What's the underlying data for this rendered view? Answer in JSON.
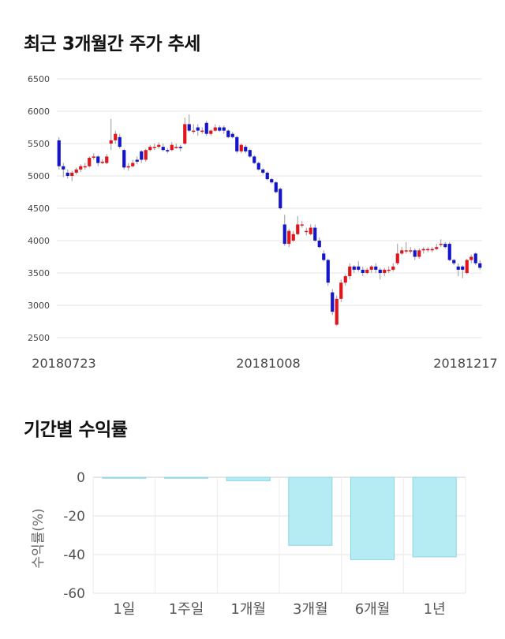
{
  "section1": {
    "title": "최근 3개월간 주가 추세"
  },
  "section2": {
    "title": "기간별 수익률"
  },
  "chart_data": [
    {
      "type": "candlestick",
      "ylim": [
        2500,
        6500
      ],
      "yticks": [
        "6500",
        "6000",
        "5500",
        "5000",
        "4500",
        "4000",
        "3500",
        "3000",
        "2500"
      ],
      "xticks": [
        "20180723",
        "20181008",
        "20181217"
      ],
      "up_color": "#e0141c",
      "down_color": "#1414c8",
      "grid": true,
      "candles": [
        [
          5550,
          5150,
          5600,
          5100
        ],
        [
          5150,
          5100,
          5200,
          4980
        ],
        [
          5050,
          5000,
          5100,
          4960
        ],
        [
          5000,
          5050,
          5080,
          4920
        ],
        [
          5050,
          5100,
          5130,
          5020
        ],
        [
          5100,
          5150,
          5180,
          5060
        ],
        [
          5150,
          5150,
          5200,
          5100
        ],
        [
          5150,
          5280,
          5300,
          5130
        ],
        [
          5280,
          5300,
          5350,
          5250
        ],
        [
          5300,
          5200,
          5320,
          5150
        ],
        [
          5200,
          5220,
          5260,
          5180
        ],
        [
          5200,
          5300,
          5340,
          5180
        ],
        [
          5500,
          5550,
          5880,
          5400
        ],
        [
          5550,
          5650,
          5700,
          5500
        ],
        [
          5600,
          5450,
          5650,
          5420
        ],
        [
          5400,
          5130,
          5420,
          5100
        ],
        [
          5130,
          5150,
          5200,
          5080
        ],
        [
          5150,
          5200,
          5250,
          5130
        ],
        [
          5250,
          5220,
          5300,
          5180
        ],
        [
          5380,
          5250,
          5400,
          5200
        ],
        [
          5250,
          5400,
          5420,
          5220
        ],
        [
          5400,
          5450,
          5480,
          5380
        ],
        [
          5450,
          5450,
          5500,
          5400
        ],
        [
          5450,
          5480,
          5520,
          5420
        ],
        [
          5450,
          5400,
          5500,
          5380
        ],
        [
          5400,
          5380,
          5430,
          5350
        ],
        [
          5400,
          5480,
          5520,
          5380
        ],
        [
          5450,
          5450,
          5500,
          5420
        ],
        [
          5450,
          5430,
          5480,
          5380
        ],
        [
          5500,
          5800,
          5900,
          5480
        ],
        [
          5800,
          5700,
          5950,
          5680
        ],
        [
          5700,
          5700,
          5800,
          5650
        ],
        [
          5750,
          5700,
          5800,
          5620
        ],
        [
          5700,
          5700,
          5750,
          5650
        ],
        [
          5820,
          5650,
          5850,
          5620
        ],
        [
          5650,
          5700,
          5720,
          5620
        ],
        [
          5700,
          5750,
          5800,
          5680
        ],
        [
          5750,
          5700,
          5780,
          5680
        ],
        [
          5750,
          5700,
          5780,
          5650
        ],
        [
          5700,
          5600,
          5720,
          5580
        ],
        [
          5650,
          5600,
          5680,
          5580
        ],
        [
          5600,
          5380,
          5620,
          5350
        ],
        [
          5380,
          5480,
          5500,
          5350
        ],
        [
          5450,
          5380,
          5480,
          5350
        ],
        [
          5400,
          5300,
          5420,
          5280
        ],
        [
          5300,
          5200,
          5320,
          5180
        ],
        [
          5200,
          5100,
          5220,
          5080
        ],
        [
          5100,
          5050,
          5120,
          5020
        ],
        [
          5050,
          4950,
          5070,
          4930
        ],
        [
          4950,
          4900,
          4970,
          4880
        ],
        [
          4900,
          4750,
          4920,
          4730
        ],
        [
          4800,
          4500,
          4820,
          4480
        ],
        [
          4250,
          3950,
          4400,
          3920
        ],
        [
          3950,
          4150,
          4180,
          3900
        ],
        [
          4000,
          4100,
          4150,
          3980
        ],
        [
          4100,
          4250,
          4380,
          4080
        ],
        [
          4250,
          4250,
          4300,
          4200
        ],
        [
          4150,
          4150,
          4200,
          4080
        ],
        [
          4100,
          4200,
          4250,
          4080
        ],
        [
          4200,
          4000,
          4250,
          3980
        ],
        [
          4000,
          3900,
          4050,
          3880
        ],
        [
          3800,
          3700,
          3850,
          3680
        ],
        [
          3700,
          3350,
          3720,
          3300
        ],
        [
          3200,
          2900,
          3250,
          2850
        ],
        [
          2700,
          3100,
          3150,
          2680
        ],
        [
          3100,
          3350,
          3400,
          3050
        ],
        [
          3350,
          3450,
          3480,
          3300
        ],
        [
          3450,
          3600,
          3650,
          3400
        ],
        [
          3600,
          3550,
          3620,
          3500
        ],
        [
          3600,
          3550,
          3680,
          3520
        ],
        [
          3550,
          3500,
          3600,
          3450
        ],
        [
          3500,
          3550,
          3580,
          3480
        ],
        [
          3550,
          3600,
          3620,
          3500
        ],
        [
          3600,
          3550,
          3650,
          3500
        ],
        [
          3550,
          3500,
          3580,
          3400
        ],
        [
          3500,
          3550,
          3580,
          3450
        ],
        [
          3550,
          3550,
          3600,
          3500
        ],
        [
          3550,
          3600,
          3650,
          3520
        ],
        [
          3650,
          3800,
          3950,
          3620
        ],
        [
          3800,
          3850,
          3900,
          3780
        ],
        [
          3850,
          3850,
          3980,
          3800
        ],
        [
          3850,
          3850,
          3900,
          3800
        ],
        [
          3850,
          3750,
          3880,
          3700
        ],
        [
          3750,
          3850,
          3880,
          3720
        ],
        [
          3850,
          3870,
          3900,
          3800
        ],
        [
          3870,
          3870,
          3900,
          3820
        ],
        [
          3850,
          3870,
          3900,
          3820
        ],
        [
          3870,
          3900,
          3950,
          3850
        ],
        [
          3950,
          3950,
          4020,
          3900
        ],
        [
          3950,
          3900,
          3980,
          3880
        ],
        [
          3950,
          3700,
          3980,
          3680
        ],
        [
          3700,
          3650,
          3720,
          3620
        ],
        [
          3600,
          3550,
          3650,
          3450
        ],
        [
          3600,
          3550,
          3620,
          3420
        ],
        [
          3500,
          3700,
          3720,
          3480
        ],
        [
          3700,
          3750,
          3780,
          3650
        ],
        [
          3800,
          3650,
          3820,
          3620
        ],
        [
          3650,
          3580,
          3700,
          3550
        ]
      ]
    },
    {
      "type": "bar",
      "categories": [
        "1일",
        "1주일",
        "1개월",
        "3개월",
        "6개월",
        "1년"
      ],
      "values": [
        0,
        -0.1,
        -1.8,
        -35.2,
        -42.6,
        -41.2
      ],
      "ylabel": "수익률(%)",
      "ylim": [
        -60,
        0
      ],
      "yticks": [
        "0",
        "-20",
        "-40",
        "-60"
      ],
      "bar_color": "#b5ebf3",
      "bar_edge": "#8fd3e2",
      "grid": true
    }
  ]
}
